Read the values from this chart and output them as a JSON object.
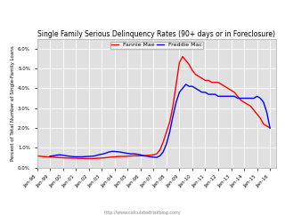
{
  "title": "Single Family Serious Delinquency Rates (90+ days or in Foreclosure)",
  "ylabel": "Percent of Total Number of Single-Family Loans",
  "url_text": "http://www.calculatedriskblog.com/",
  "legend_entries": [
    "Fannie Mae",
    "Freddie Mac"
  ],
  "colors": [
    "red",
    "blue"
  ],
  "ylim": [
    0.0,
    0.065
  ],
  "yticks": [
    0.0,
    0.01,
    0.02,
    0.03,
    0.04,
    0.05,
    0.06
  ],
  "ytick_labels": [
    "0.0%",
    "1.0%",
    "2.0%",
    "3.0%",
    "4.0%",
    "5.0%",
    "6.0%"
  ],
  "background_color": "#e0e0e0",
  "fannie_x": [
    1998,
    1998.25,
    1998.5,
    1998.75,
    1999,
    1999.25,
    1999.5,
    1999.75,
    2000,
    2000.25,
    2000.5,
    2000.75,
    2001,
    2001.25,
    2001.5,
    2001.75,
    2002,
    2002.25,
    2002.5,
    2002.75,
    2003,
    2003.25,
    2003.5,
    2003.75,
    2004,
    2004.25,
    2004.5,
    2004.75,
    2005,
    2005.25,
    2005.5,
    2005.75,
    2006,
    2006.25,
    2006.5,
    2006.75,
    2007,
    2007.25,
    2007.5,
    2007.75,
    2008,
    2008.25,
    2008.5,
    2008.75,
    2009,
    2009.25,
    2009.5,
    2009.75,
    2010,
    2010.25,
    2010.5,
    2010.75,
    2011,
    2011.25,
    2011.5,
    2011.75,
    2012,
    2012.25,
    2012.5,
    2012.75,
    2013,
    2013.25,
    2013.5,
    2013.75,
    2014,
    2014.25,
    2014.5,
    2014.75,
    2015,
    2015.25,
    2015.5,
    2015.75,
    2016
  ],
  "fannie_y": [
    0.006,
    0.0058,
    0.0056,
    0.0055,
    0.0054,
    0.0053,
    0.0052,
    0.0051,
    0.005,
    0.0049,
    0.0049,
    0.0048,
    0.0048,
    0.0047,
    0.0047,
    0.0046,
    0.0046,
    0.0046,
    0.0047,
    0.0048,
    0.0049,
    0.005,
    0.0052,
    0.0054,
    0.0055,
    0.0056,
    0.0057,
    0.0057,
    0.0058,
    0.0059,
    0.006,
    0.006,
    0.006,
    0.0061,
    0.0062,
    0.0063,
    0.0065,
    0.007,
    0.009,
    0.013,
    0.018,
    0.023,
    0.031,
    0.042,
    0.053,
    0.056,
    0.054,
    0.052,
    0.049,
    0.047,
    0.046,
    0.045,
    0.044,
    0.044,
    0.043,
    0.043,
    0.043,
    0.042,
    0.041,
    0.04,
    0.039,
    0.038,
    0.036,
    0.034,
    0.033,
    0.032,
    0.031,
    0.029,
    0.027,
    0.025,
    0.022,
    0.021,
    0.02
  ],
  "freddie_x": [
    1999,
    1999.25,
    1999.5,
    1999.75,
    2000,
    2000.25,
    2000.5,
    2000.75,
    2001,
    2001.25,
    2001.5,
    2001.75,
    2002,
    2002.25,
    2002.5,
    2002.75,
    2003,
    2003.25,
    2003.5,
    2003.75,
    2004,
    2004.25,
    2004.5,
    2004.75,
    2005,
    2005.25,
    2005.5,
    2005.75,
    2006,
    2006.25,
    2006.5,
    2006.75,
    2007,
    2007.25,
    2007.5,
    2007.75,
    2008,
    2008.25,
    2008.5,
    2008.75,
    2009,
    2009.25,
    2009.5,
    2009.75,
    2010,
    2010.25,
    2010.5,
    2010.75,
    2011,
    2011.25,
    2011.5,
    2011.75,
    2012,
    2012.25,
    2012.5,
    2012.75,
    2013,
    2013.25,
    2013.5,
    2013.75,
    2014,
    2014.25,
    2014.5,
    2014.75,
    2015,
    2015.25,
    2015.5,
    2015.75,
    2016
  ],
  "freddie_y": [
    0.0058,
    0.006,
    0.0063,
    0.0065,
    0.0063,
    0.006,
    0.0058,
    0.0056,
    0.0055,
    0.0055,
    0.0055,
    0.0056,
    0.0057,
    0.0058,
    0.006,
    0.0065,
    0.0068,
    0.0072,
    0.0078,
    0.0082,
    0.0082,
    0.008,
    0.0078,
    0.0075,
    0.0072,
    0.007,
    0.007,
    0.0068,
    0.0065,
    0.006,
    0.0058,
    0.0055,
    0.0053,
    0.0052,
    0.006,
    0.008,
    0.012,
    0.018,
    0.026,
    0.033,
    0.038,
    0.04,
    0.042,
    0.041,
    0.041,
    0.04,
    0.039,
    0.038,
    0.038,
    0.037,
    0.037,
    0.037,
    0.036,
    0.036,
    0.036,
    0.036,
    0.036,
    0.036,
    0.035,
    0.035,
    0.035,
    0.035,
    0.035,
    0.035,
    0.036,
    0.035,
    0.033,
    0.028,
    0.02
  ],
  "xtick_years": [
    1998,
    1999,
    2000,
    2001,
    2002,
    2003,
    2004,
    2005,
    2006,
    2007,
    2008,
    2009,
    2010,
    2011,
    2012,
    2013,
    2014,
    2015,
    2016
  ],
  "xtick_labels": [
    "Jan-98",
    "Jan-99",
    "Jan-00",
    "Jan-01",
    "Jan-02",
    "Jan-03",
    "Jan-04",
    "Jan-05",
    "Jan-06",
    "Jan-07",
    "Jan-08",
    "Jan-09",
    "Jan-10",
    "Jan-11",
    "Jan-12",
    "Jan-13",
    "Jan-14",
    "Jan-15",
    "Jan-16"
  ],
  "xlim": [
    1998,
    2016.5
  ],
  "title_fontsize": 5.5,
  "tick_fontsize": 4.0,
  "ylabel_fontsize": 4.0,
  "legend_fontsize": 4.5,
  "url_fontsize": 3.5,
  "linewidth": 1.0
}
